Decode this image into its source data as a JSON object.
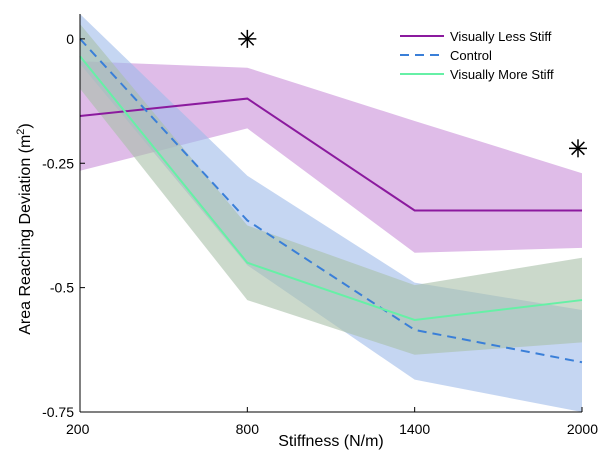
{
  "chart_data": {
    "type": "line",
    "x": [
      200,
      800,
      1400,
      2000
    ],
    "xticks": [
      "200",
      "800",
      "1400",
      "2000"
    ],
    "yticks": [
      "0",
      "-0.25",
      "-0.5",
      "-0.75"
    ],
    "xlabel": "Stiffness (N/m)",
    "ylabel_main": "Area Reaching Deviation (m",
    "ylabel_sup": "2",
    "ylabel_end": ")",
    "xlim": [
      200,
      2000
    ],
    "ylim": [
      -0.75,
      0.05
    ],
    "grid": false,
    "legend_position": "top-right",
    "series": [
      {
        "name": "Visually Less Stiff",
        "color": "#8b1a9e",
        "band_color": "#c98fd8",
        "line_style": "solid",
        "values": [
          -0.155,
          -0.12,
          -0.345,
          -0.345
        ],
        "lower": [
          -0.265,
          -0.18,
          -0.43,
          -0.42
        ],
        "upper": [
          -0.045,
          -0.058,
          -0.165,
          -0.27
        ]
      },
      {
        "name": "Control",
        "color": "#3a7fd8",
        "band_color": "#9fbbe9",
        "line_style": "dashed",
        "values": [
          0.0,
          -0.365,
          -0.585,
          -0.65
        ],
        "lower": [
          -0.05,
          -0.455,
          -0.685,
          -0.75
        ],
        "upper": [
          0.05,
          -0.275,
          -0.49,
          -0.545
        ]
      },
      {
        "name": "Visually More Stiff",
        "color": "#66f0a6",
        "band_color": "#a8bfa8",
        "line_style": "solid",
        "values": [
          -0.035,
          -0.45,
          -0.565,
          -0.525
        ],
        "lower": [
          -0.1,
          -0.525,
          -0.635,
          -0.61
        ],
        "upper": [
          0.03,
          -0.375,
          -0.495,
          -0.44
        ]
      }
    ],
    "annotations": [
      {
        "symbol": "*",
        "x": 800,
        "y": 0.0
      },
      {
        "symbol": "*",
        "x": 2000,
        "y": -0.22
      }
    ]
  }
}
